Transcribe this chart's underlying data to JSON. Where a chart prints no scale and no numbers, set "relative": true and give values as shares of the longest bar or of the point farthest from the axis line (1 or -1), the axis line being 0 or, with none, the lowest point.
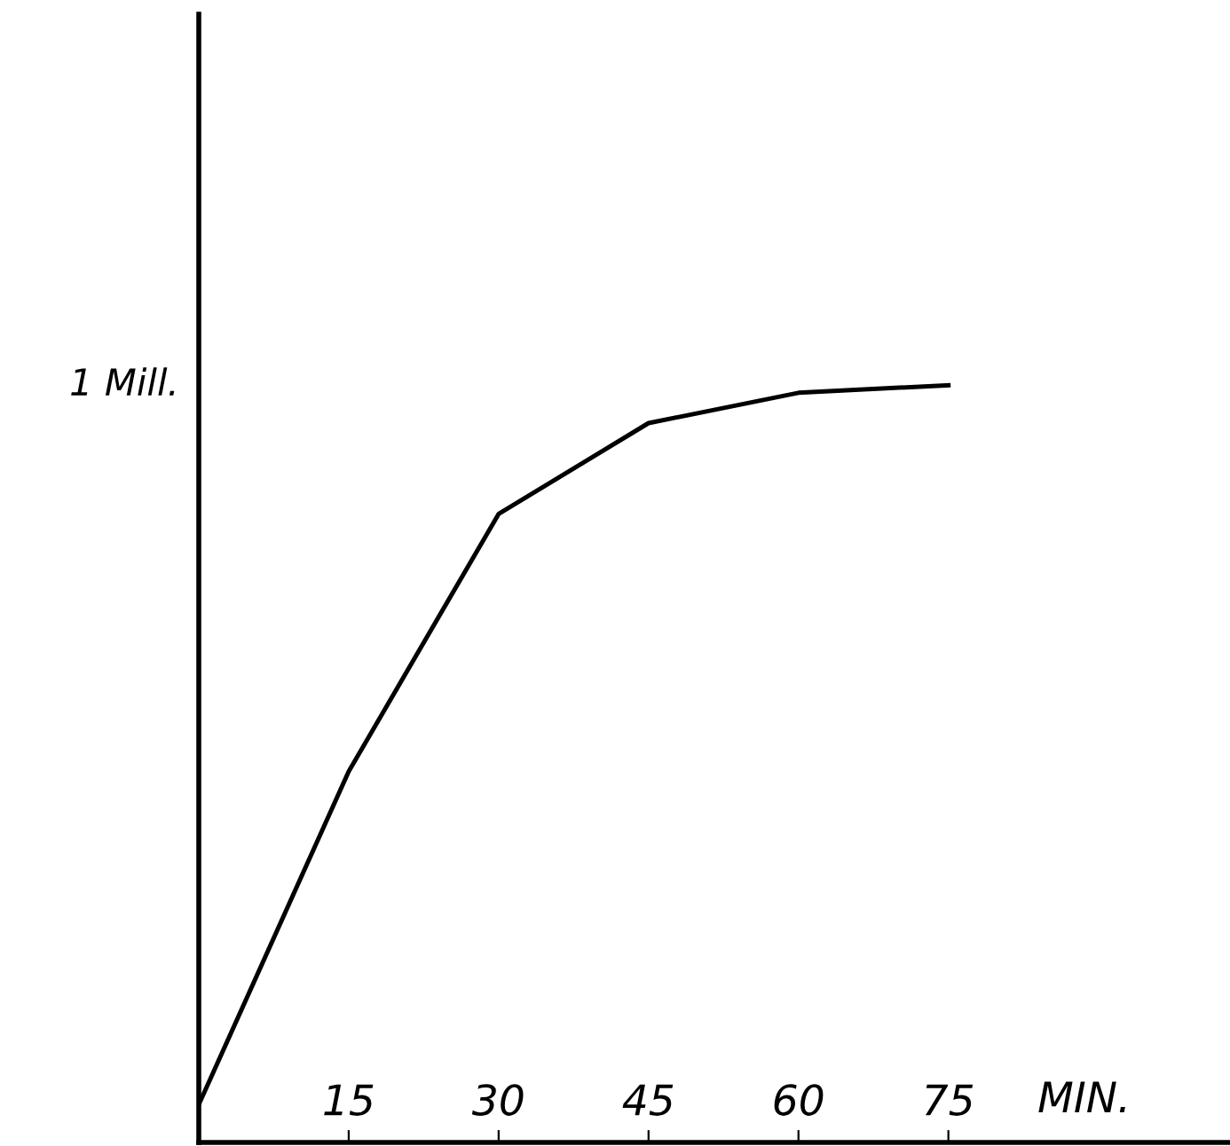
{
  "chart_data": {
    "type": "line",
    "xlabel": "MIN.",
    "relative": true,
    "x": [
      0,
      15,
      30,
      45,
      60,
      75
    ],
    "series": [
      {
        "color": "#000000",
        "values": [
          0.05,
          0.49,
          0.83,
          0.95,
          0.99,
          1.0
        ]
      }
    ],
    "xlim": [
      0,
      103
    ],
    "xticks": [
      15,
      30,
      45,
      60,
      75
    ],
    "annotations": [
      "1 Mill."
    ],
    "grid": false,
    "legend": false,
    "marker": "none",
    "line_style": "solid"
  }
}
